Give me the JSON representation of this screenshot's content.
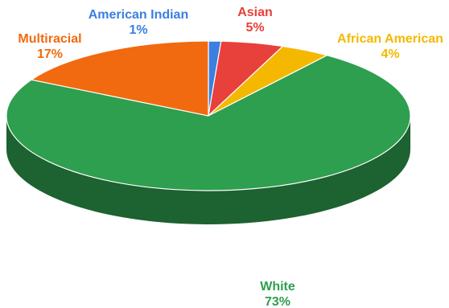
{
  "chart_data": {
    "type": "pie",
    "style": "3d",
    "slices": [
      {
        "label": "American Indian",
        "pct_label": "1%",
        "value": 1,
        "color": "#3b7fe0"
      },
      {
        "label": "Asian",
        "pct_label": "5%",
        "value": 5,
        "color": "#e8403a"
      },
      {
        "label": "African American",
        "pct_label": "4%",
        "value": 4,
        "color": "#f5b800"
      },
      {
        "label": "White",
        "pct_label": "73%",
        "value": 73,
        "color": "#2e9e4f"
      },
      {
        "label": "Multiracial",
        "pct_label": "17%",
        "value": 17,
        "color": "#f26a0f"
      }
    ],
    "title": "",
    "legend": "none"
  }
}
